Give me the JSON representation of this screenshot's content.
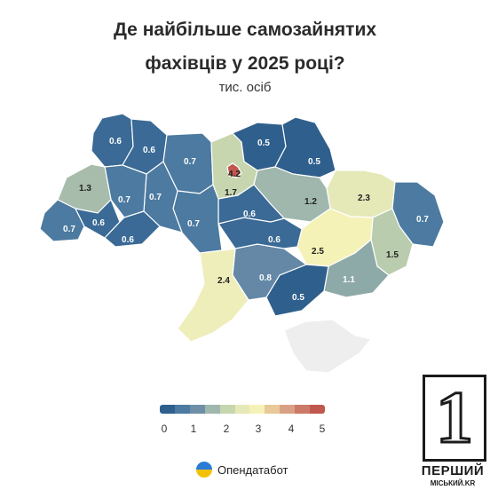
{
  "title_line1": "Де найбільше самозайнятих",
  "title_line2": "фахівців у 2025 році?",
  "subtitle": "тис. осіб",
  "colors": {
    "c05": "#2f5f8c",
    "c06": "#3a6a95",
    "c07": "#4c7aa0",
    "c08": "#6488a6",
    "c11": "#8eaaa8",
    "c12": "#9fb7ad",
    "c13": "#a7bcab",
    "c15": "#b9ccae",
    "c17": "#c8d6b0",
    "c23": "#e5e9b8",
    "c24": "#eeeeba",
    "c25": "#f5f2b8",
    "c42": "#c1584f",
    "crimea": "#eeeeee"
  },
  "regions": [
    {
      "value": "0.6"
    },
    {
      "value": "0.6"
    },
    {
      "value": "0.7"
    },
    {
      "value": "0.5"
    },
    {
      "value": "0.5"
    },
    {
      "value": "4.2"
    },
    {
      "value": "1.7"
    },
    {
      "value": "1.3"
    },
    {
      "value": "0.7"
    },
    {
      "value": "0.7"
    },
    {
      "value": "1.2"
    },
    {
      "value": "2.3"
    },
    {
      "value": "0.7"
    },
    {
      "value": "0.6"
    },
    {
      "value": "0.7"
    },
    {
      "value": "0.6"
    },
    {
      "value": "0.6"
    },
    {
      "value": "0.7"
    },
    {
      "value": "0.6"
    },
    {
      "value": "2.5"
    },
    {
      "value": "1.5"
    },
    {
      "value": "2.4"
    },
    {
      "value": "0.8"
    },
    {
      "value": "1.1"
    },
    {
      "value": "0.5"
    }
  ],
  "legend": {
    "ticks": [
      "0",
      "1",
      "2",
      "3",
      "4",
      "5"
    ],
    "colors": [
      "#2f5f8c",
      "#4c7aa0",
      "#6f8fa8",
      "#9fb7ad",
      "#c8d6b0",
      "#e5e9b8",
      "#f5f2b8",
      "#e9c99a",
      "#d9a183",
      "#cc7a68",
      "#c1584f"
    ]
  },
  "brand": "Опендатабот",
  "badge": {
    "number": "1",
    "line1": "ПЕРШИЙ",
    "line2": "МІСЬКИЙ.KR"
  }
}
